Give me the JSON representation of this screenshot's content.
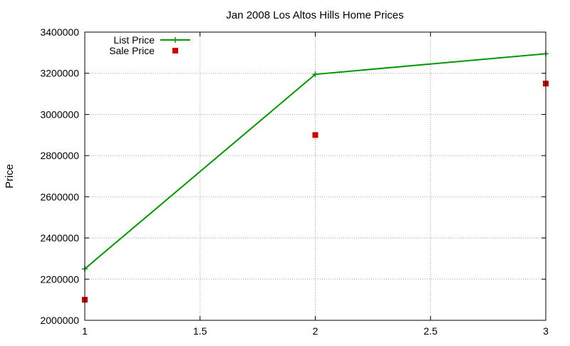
{
  "chart_data": {
    "type": "line",
    "title": "Jan 2008 Los Altos Hills Home Prices",
    "xlabel": "",
    "ylabel": "Price",
    "xlim": [
      1,
      3
    ],
    "ylim": [
      2000000,
      3400000
    ],
    "x_ticks": [
      "1",
      "1.5",
      "2",
      "2.5",
      "3"
    ],
    "y_ticks": [
      "2000000",
      "2200000",
      "2400000",
      "2600000",
      "2800000",
      "3000000",
      "3200000",
      "3400000"
    ],
    "grid": true,
    "legend_position": "top-left",
    "series": [
      {
        "name": "List Price",
        "style": "line-with-plus-markers",
        "color": "#009900",
        "x": [
          1,
          2,
          3
        ],
        "values": [
          2250000,
          3195000,
          3295000
        ]
      },
      {
        "name": "Sale Price",
        "style": "square-markers",
        "color": "#cc0000",
        "x": [
          1,
          2,
          3
        ],
        "values": [
          2100000,
          2900000,
          3150000
        ]
      }
    ]
  }
}
